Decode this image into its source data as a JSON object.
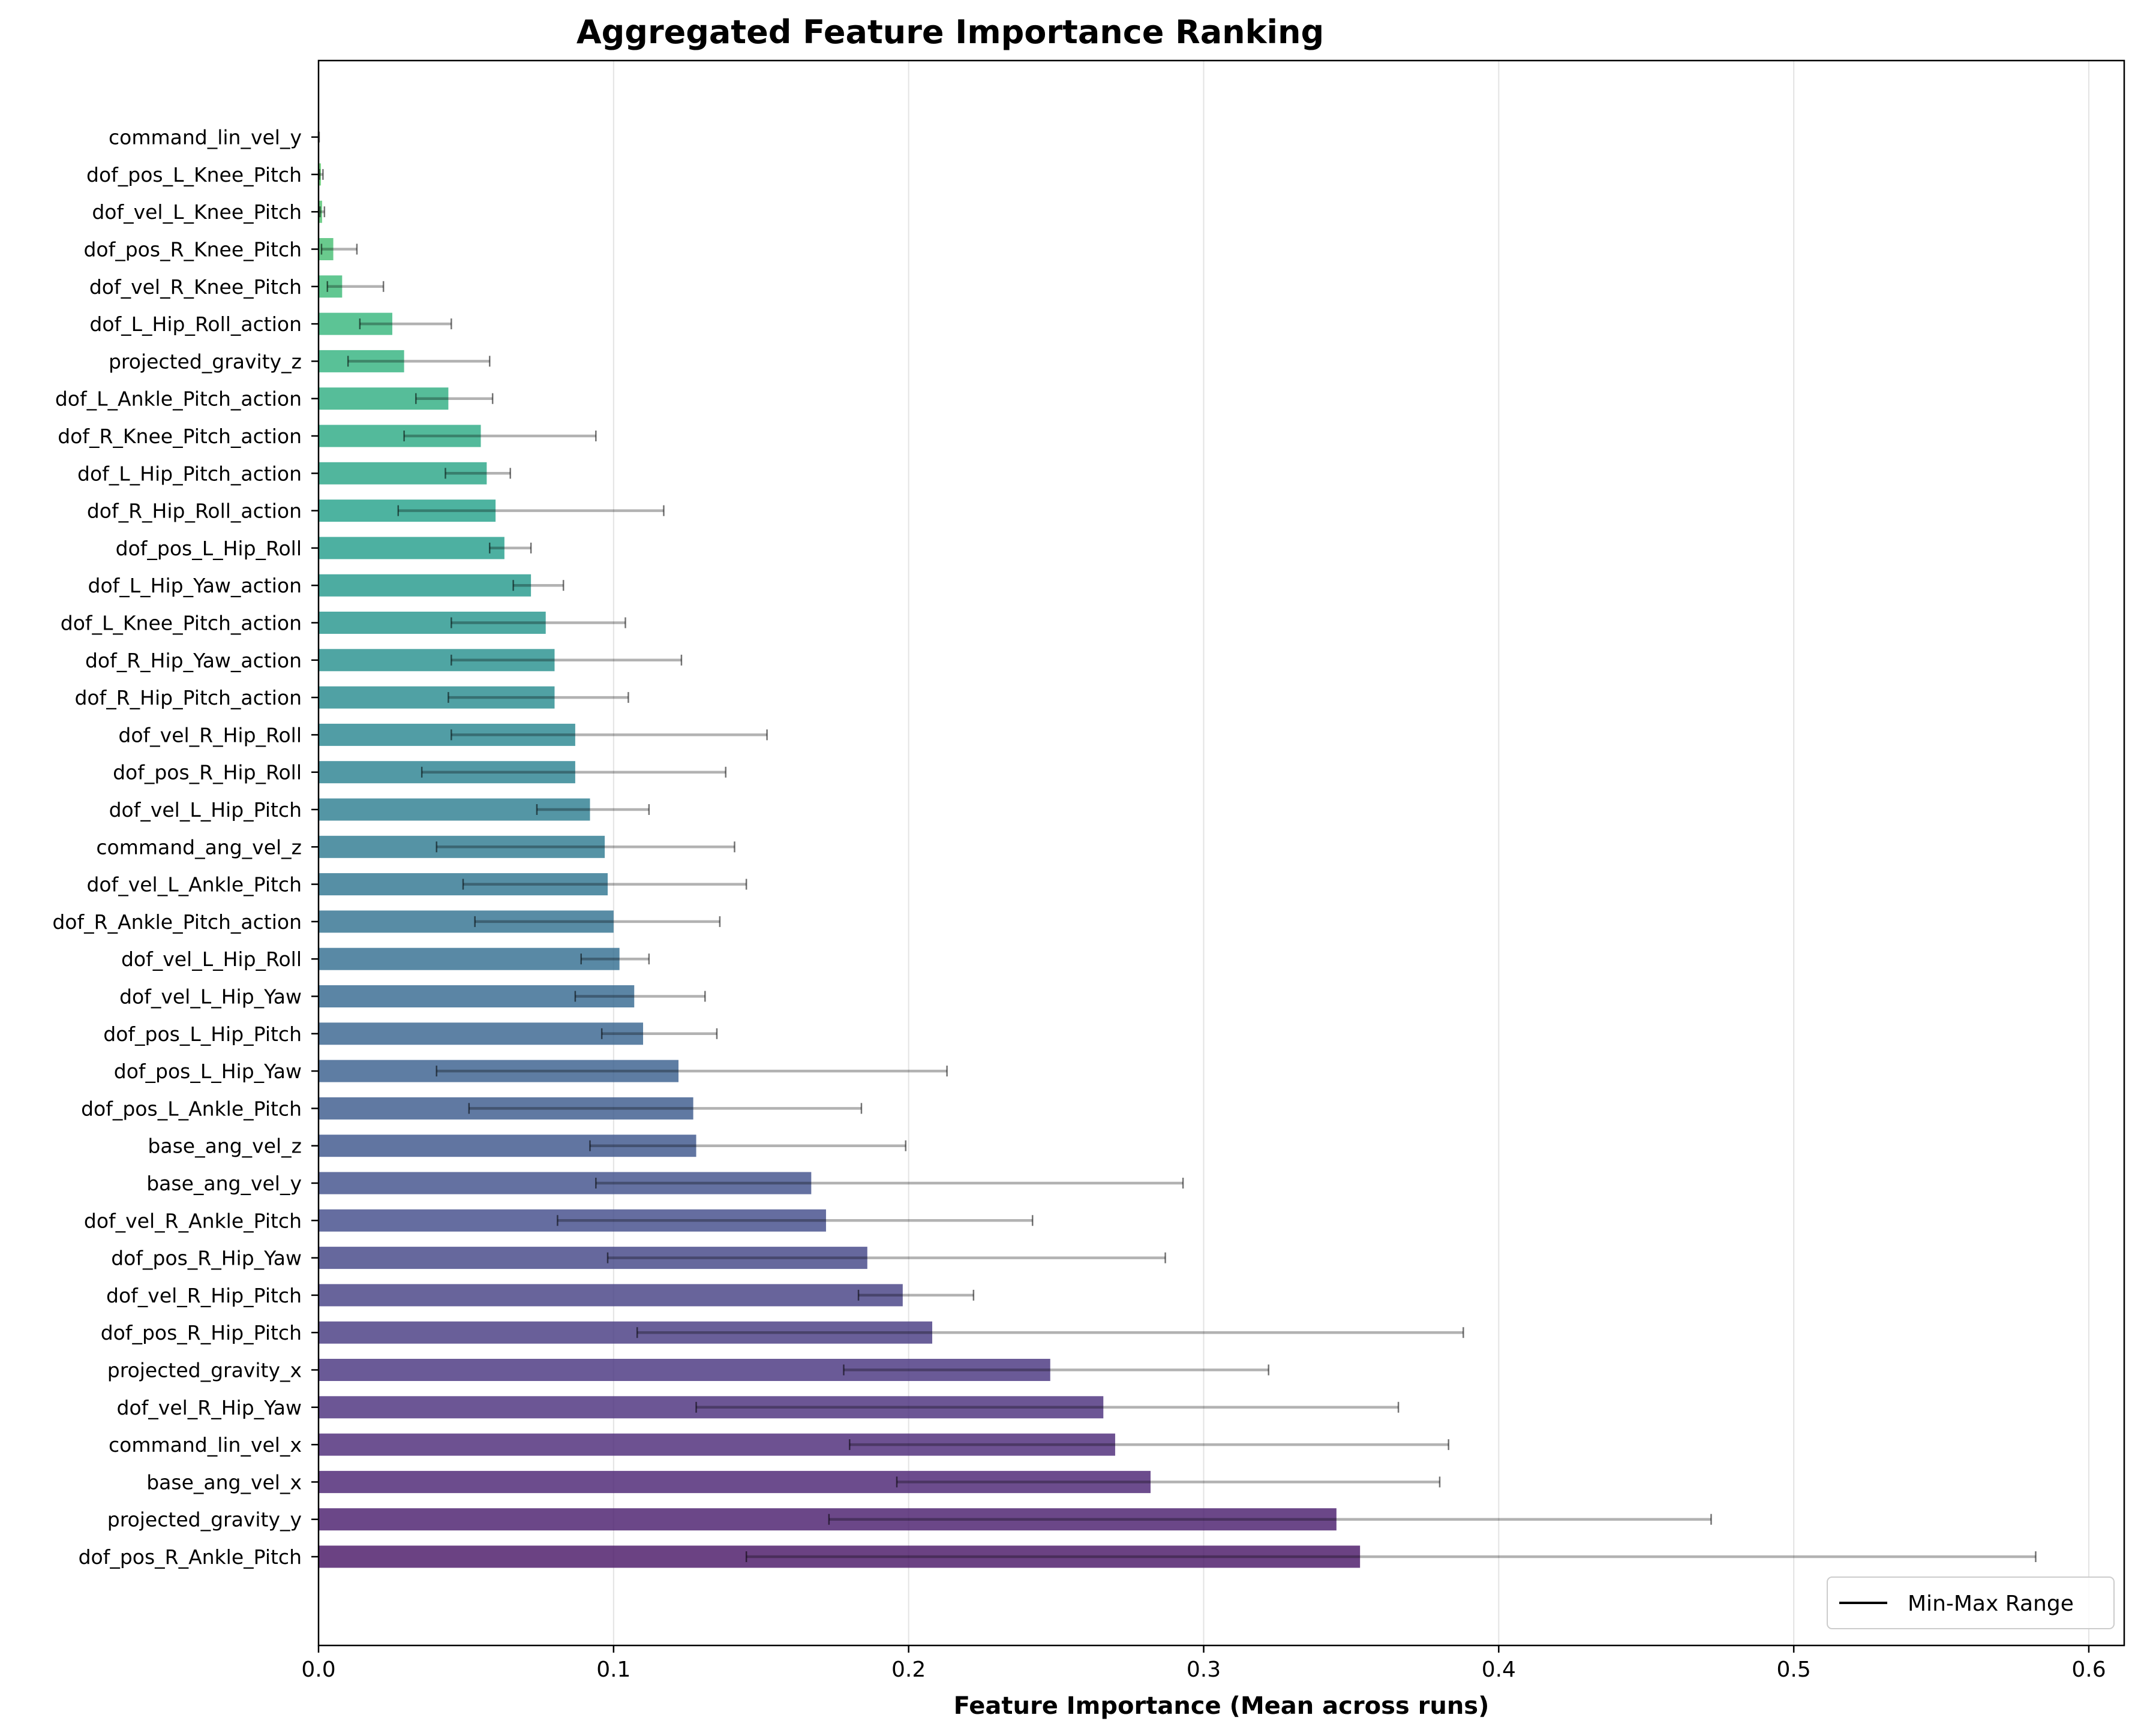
{
  "chart_data": {
    "type": "bar",
    "orientation": "horizontal",
    "title": "Aggregated Feature Importance Ranking",
    "xlabel": "Feature Importance (Mean across runs)",
    "ylabel": "",
    "xlim": [
      0,
      0.612
    ],
    "xticks": [
      0.0,
      0.1,
      0.2,
      0.3,
      0.4,
      0.5,
      0.6
    ],
    "xtick_labels": [
      "0.0",
      "0.1",
      "0.2",
      "0.3",
      "0.4",
      "0.5",
      "0.6"
    ],
    "grid": "vertical",
    "colormap": "viridis",
    "legend": {
      "entries": [
        "Min-Max Range"
      ],
      "placement": "lower-right"
    },
    "categories": [
      "dof_pos_R_Ankle_Pitch",
      "projected_gravity_y",
      "base_ang_vel_x",
      "command_lin_vel_x",
      "dof_vel_R_Hip_Yaw",
      "projected_gravity_x",
      "dof_pos_R_Hip_Pitch",
      "dof_vel_R_Hip_Pitch",
      "dof_pos_R_Hip_Yaw",
      "dof_vel_R_Ankle_Pitch",
      "base_ang_vel_y",
      "base_ang_vel_z",
      "dof_pos_L_Ankle_Pitch",
      "dof_pos_L_Hip_Yaw",
      "dof_pos_L_Hip_Pitch",
      "dof_vel_L_Hip_Yaw",
      "dof_vel_L_Hip_Roll",
      "dof_R_Ankle_Pitch_action",
      "dof_vel_L_Ankle_Pitch",
      "command_ang_vel_z",
      "dof_vel_L_Hip_Pitch",
      "dof_pos_R_Hip_Roll",
      "dof_vel_R_Hip_Roll",
      "dof_R_Hip_Pitch_action",
      "dof_R_Hip_Yaw_action",
      "dof_L_Knee_Pitch_action",
      "dof_L_Hip_Yaw_action",
      "dof_pos_L_Hip_Roll",
      "dof_R_Hip_Roll_action",
      "dof_L_Hip_Pitch_action",
      "dof_R_Knee_Pitch_action",
      "dof_L_Ankle_Pitch_action",
      "projected_gravity_z",
      "dof_L_Hip_Roll_action",
      "dof_vel_R_Knee_Pitch",
      "dof_pos_R_Knee_Pitch",
      "dof_vel_L_Knee_Pitch",
      "dof_pos_L_Knee_Pitch",
      "command_lin_vel_y"
    ],
    "values": [
      0.353,
      0.345,
      0.282,
      0.27,
      0.266,
      0.248,
      0.208,
      0.198,
      0.186,
      0.172,
      0.167,
      0.128,
      0.127,
      0.122,
      0.11,
      0.107,
      0.102,
      0.1,
      0.098,
      0.097,
      0.092,
      0.087,
      0.087,
      0.08,
      0.08,
      0.077,
      0.072,
      0.063,
      0.06,
      0.057,
      0.055,
      0.044,
      0.029,
      0.025,
      0.008,
      0.005,
      0.0012,
      0.0008,
      0.0001
    ],
    "min": [
      0.145,
      0.173,
      0.196,
      0.18,
      0.128,
      0.178,
      0.108,
      0.183,
      0.098,
      0.081,
      0.094,
      0.092,
      0.051,
      0.04,
      0.096,
      0.087,
      0.089,
      0.053,
      0.049,
      0.04,
      0.074,
      0.035,
      0.045,
      0.044,
      0.045,
      0.045,
      0.066,
      0.058,
      0.027,
      0.043,
      0.029,
      0.033,
      0.01,
      0.014,
      0.003,
      0.001,
      0.0005,
      0.0003,
      0.0
    ],
    "max": [
      0.582,
      0.472,
      0.38,
      0.383,
      0.366,
      0.322,
      0.388,
      0.222,
      0.287,
      0.242,
      0.293,
      0.199,
      0.184,
      0.213,
      0.135,
      0.131,
      0.112,
      0.136,
      0.145,
      0.141,
      0.112,
      0.138,
      0.152,
      0.105,
      0.123,
      0.104,
      0.083,
      0.072,
      0.117,
      0.065,
      0.094,
      0.059,
      0.058,
      0.045,
      0.022,
      0.013,
      0.002,
      0.0015,
      0.0002
    ]
  }
}
